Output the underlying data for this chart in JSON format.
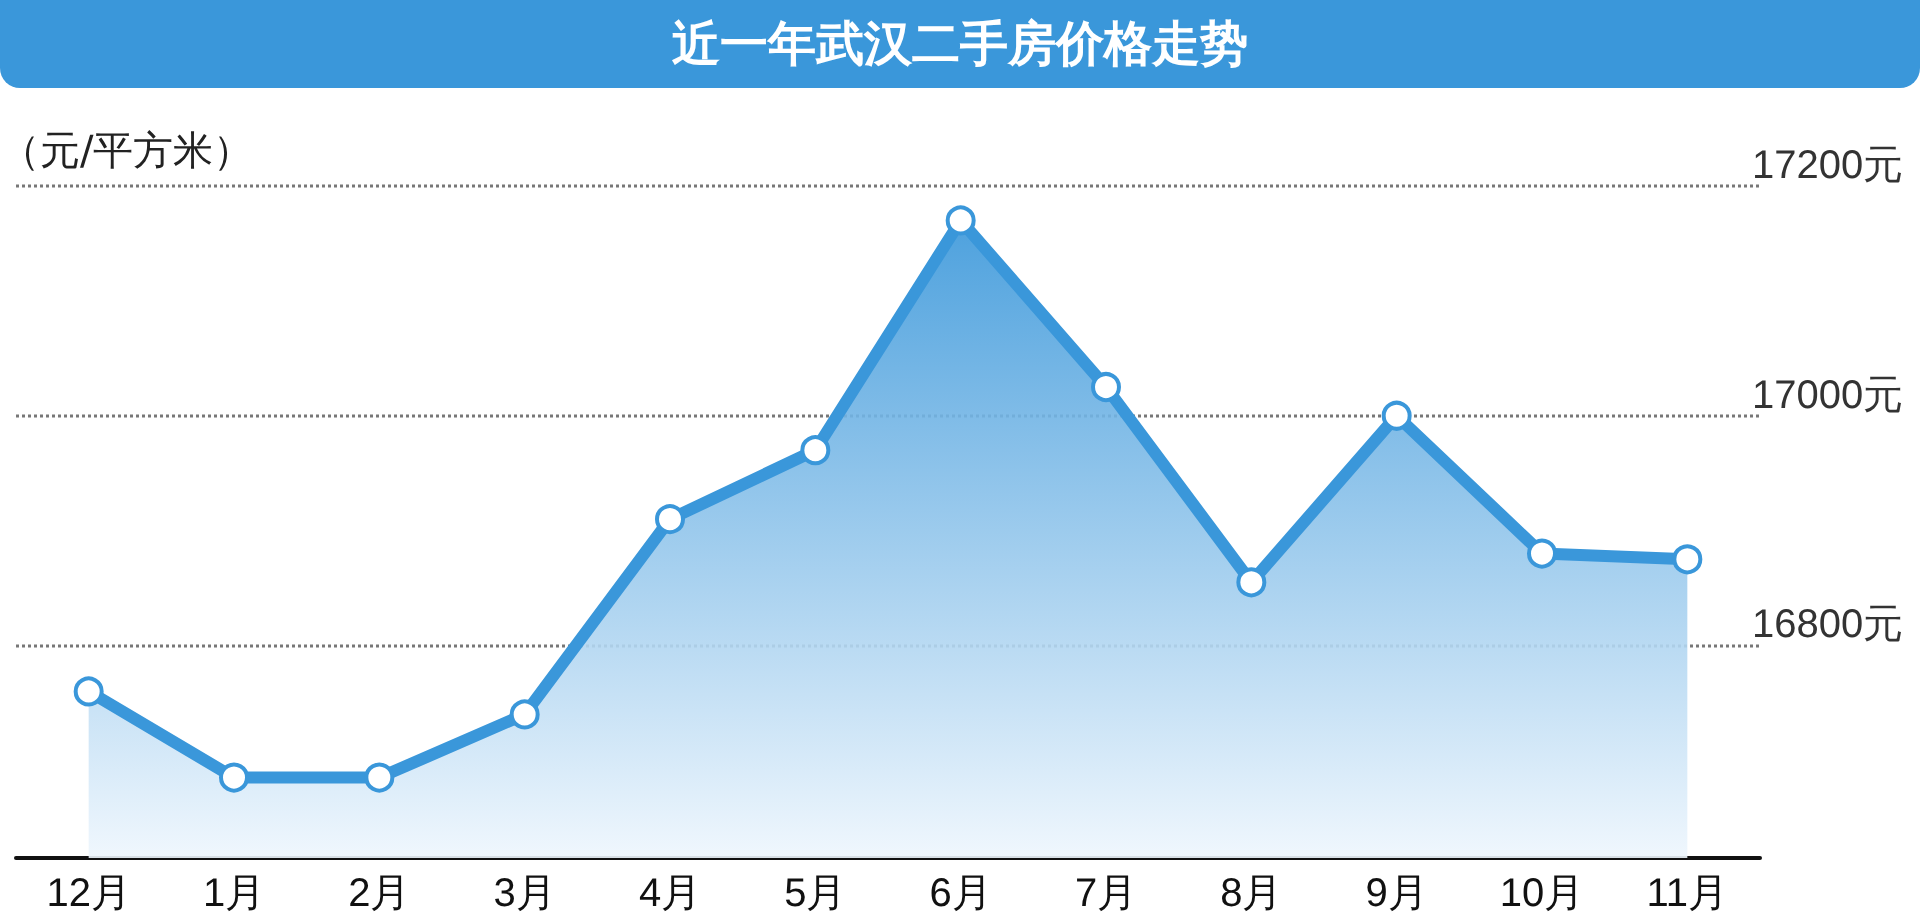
{
  "chart_data": {
    "type": "area",
    "title": "近一年武汉二手房价格走势",
    "ylabel": "（元/平方米）",
    "categories": [
      "12月",
      "1月",
      "2月",
      "3月",
      "4月",
      "5月",
      "6月",
      "7月",
      "8月",
      "9月",
      "10月",
      "11月"
    ],
    "values": [
      16760,
      16685,
      16685,
      16740,
      16910,
      16970,
      17170,
      17025,
      16855,
      17000,
      16880,
      16875
    ],
    "color": "#3a97da",
    "ylim": [
      16615,
      17200
    ],
    "yticks": [
      {
        "value": 16800,
        "label": "16800元"
      },
      {
        "value": 17000,
        "label": "17000元"
      },
      {
        "value": 17200,
        "label": "17200元"
      }
    ],
    "grid": "y",
    "marker": "circle",
    "line_style": "solid"
  }
}
